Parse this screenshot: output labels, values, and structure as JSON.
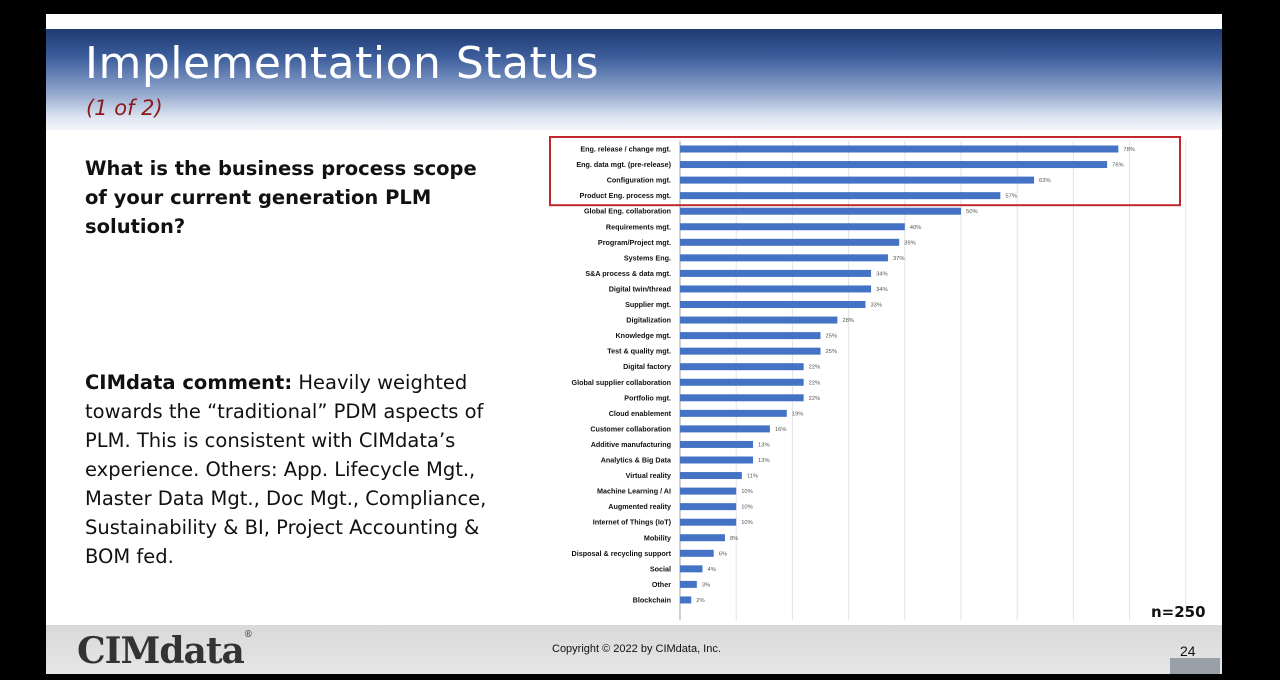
{
  "slide": {
    "title": "Implementation Status",
    "subtitle": "(1 of 2)",
    "question": "What is the business process scope of your current generation PLM solution?",
    "comment_label": "CIMdata comment:",
    "comment_text": " Heavily weighted towards the “traditional” PDM aspects of PLM. This is consistent with CIMdata’s experience. Others: App. Lifecycle Mgt., Master Data Mgt., Doc Mgt., Compliance, Sustainability & BI, Project Accounting & BOM fed.",
    "sample_size": "n=250",
    "logo": "CIMdata",
    "logo_mark": "®",
    "copyright": "Copyright © 2022 by CIMdata, Inc.",
    "page_number": "24"
  },
  "colors": {
    "bar": "#4472c4",
    "highlight_box": "#c0282d",
    "title": "#ffffff",
    "subtitle": "#8b1a1a"
  },
  "chart_data": {
    "type": "bar",
    "orientation": "horizontal",
    "categories": [
      "Eng. release / change mgt.",
      "Eng. data mgt. (pre-release)",
      "Configuration mgt.",
      "Product Eng. process mgt.",
      "Global Eng. collaboration",
      "Requirements mgt.",
      "Program/Project mgt.",
      "Systems Eng.",
      "S&A process & data mgt.",
      "Digital twin/thread",
      "Supplier mgt.",
      "Digitalization",
      "Knowledge mgt.",
      "Test & quality mgt.",
      "Digital factory",
      "Global supplier collaboration",
      "Portfolio mgt.",
      "Cloud enablement",
      "Customer collaboration",
      "Additive manufacturing",
      "Analytics & Big Data",
      "Virtual reality",
      "Machine Learning / AI",
      "Augmented reality",
      "Internet of Things (IoT)",
      "Mobility",
      "Disposal & recycling support",
      "Social",
      "Other",
      "Blockchain"
    ],
    "values": [
      78,
      76,
      63,
      57,
      50,
      40,
      39,
      37,
      34,
      34,
      33,
      28,
      25,
      25,
      22,
      22,
      22,
      19,
      16,
      13,
      13,
      11,
      10,
      10,
      10,
      8,
      6,
      4,
      3,
      2
    ],
    "value_labels": [
      "78%",
      "76%",
      "63%",
      "57%",
      "50%",
      "40%",
      "39%",
      "37%",
      "34%",
      "34%",
      "33%",
      "28%",
      "25%",
      "25%",
      "22%",
      "22%",
      "22%",
      "19%",
      "16%",
      "13%",
      "13%",
      "11%",
      "10%",
      "10%",
      "10%",
      "8%",
      "6%",
      "4%",
      "3%",
      "2%"
    ],
    "x_ticks": [
      "0%",
      "10%",
      "20%",
      "30%",
      "40%",
      "50%",
      "60%",
      "70%",
      "80%",
      "90%"
    ],
    "xlim": [
      0,
      90
    ],
    "grid": "vertical",
    "highlighted_categories": 4
  }
}
